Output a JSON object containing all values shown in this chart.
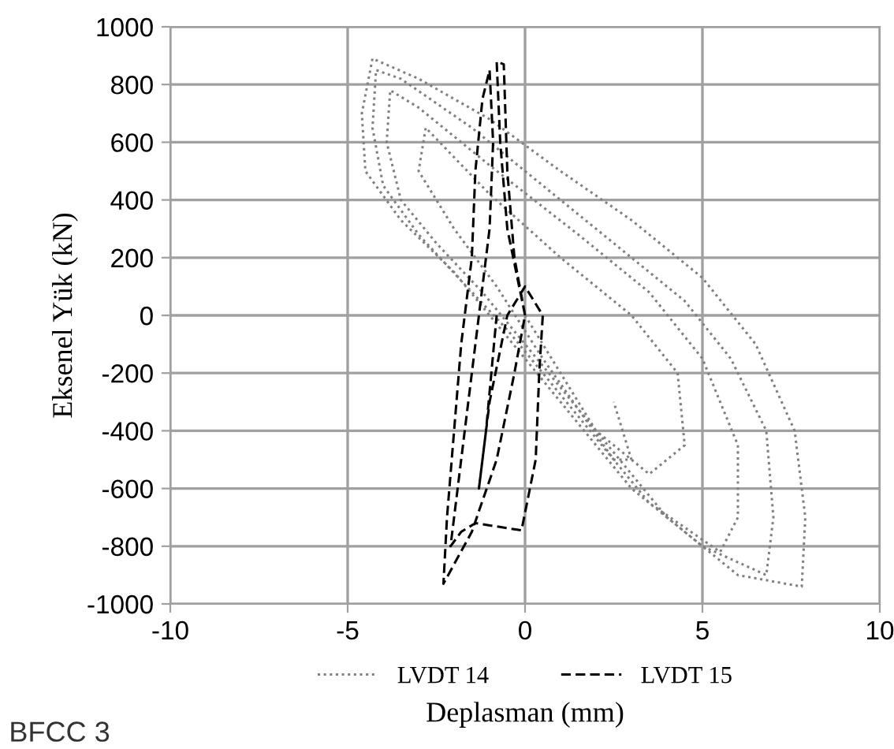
{
  "chart_data": {
    "type": "line",
    "xlabel": "Deplasman (mm)",
    "ylabel": "Eksenel Yük (kN)",
    "xlim": [
      -10,
      10
    ],
    "xticks": [
      -10,
      -5,
      0,
      5,
      10
    ],
    "ylim": [
      -1000,
      1000
    ],
    "yticks": [
      -1000,
      -800,
      -600,
      -400,
      -200,
      0,
      200,
      400,
      600,
      800,
      1000
    ],
    "grid": true,
    "legend": "bottom",
    "marker": "none",
    "annotations": [
      "BFCC 3"
    ],
    "series": [
      {
        "name": "LVDT 14",
        "color": "#808080",
        "line_style": "dotted",
        "x": [
          0,
          2,
          4,
          6,
          7.8,
          7.9,
          7.6,
          6.5,
          5,
          3,
          1,
          -1,
          -3,
          -4.3,
          -4.6,
          -4.5,
          -3.5,
          -2,
          -1,
          1,
          3,
          5,
          6.8,
          7,
          6.8,
          5.8,
          4.5,
          2.5,
          0.5,
          -1.5,
          -3.5,
          -4.2,
          -4.3,
          -4,
          -3,
          -1.8,
          -0.5,
          1.5,
          3.5,
          5.5,
          6,
          6,
          5,
          3.5,
          1.5,
          -1,
          -3,
          -3.8,
          -3.9,
          -3.5,
          -2.5,
          -1.2,
          0,
          2,
          3.5,
          4.5,
          4.3,
          3,
          1,
          -1,
          -2.8,
          -3,
          -2,
          -0.8,
          0.5,
          2.5,
          3,
          2.5
        ],
        "values": [
          0,
          -400,
          -700,
          -900,
          -940,
          -700,
          -400,
          -100,
          130,
          330,
          500,
          680,
          820,
          890,
          700,
          500,
          330,
          150,
          0,
          -300,
          -600,
          -800,
          -900,
          -700,
          -400,
          -150,
          50,
          250,
          450,
          650,
          820,
          850,
          650,
          450,
          280,
          120,
          -50,
          -350,
          -650,
          -820,
          -700,
          -450,
          -150,
          80,
          280,
          520,
          720,
          780,
          600,
          400,
          250,
          80,
          -100,
          -400,
          -550,
          -450,
          -200,
          0,
          200,
          420,
          650,
          500,
          300,
          100,
          -150,
          -500,
          -500,
          -300
        ]
      },
      {
        "name": "LVDT 15",
        "color": "#000000",
        "line_style": "dashed",
        "x": [
          0,
          -0.5,
          -0.7,
          -0.8,
          -0.6,
          -0.5,
          -0.3,
          0,
          -0.3,
          -0.8,
          -1.5,
          -2.3,
          -2.2,
          -2,
          -1.8,
          -1.5,
          -1.4,
          -1.2,
          -1,
          -0.9,
          -1,
          -1.3,
          -1.7,
          -2.1,
          -1.8,
          -1.4,
          -0.1,
          0.3,
          0.4,
          0.5,
          0,
          -0.5,
          -1,
          -1.3,
          -1.1,
          -0.8
        ],
        "values": [
          0,
          300,
          600,
          880,
          870,
          500,
          200,
          0,
          -200,
          -500,
          -750,
          -930,
          -700,
          -400,
          -100,
          200,
          500,
          750,
          850,
          600,
          300,
          0,
          -400,
          -800,
          -750,
          -720,
          -745,
          -500,
          -200,
          0,
          100,
          0,
          -300,
          -600,
          -400,
          0
        ]
      }
    ]
  }
}
